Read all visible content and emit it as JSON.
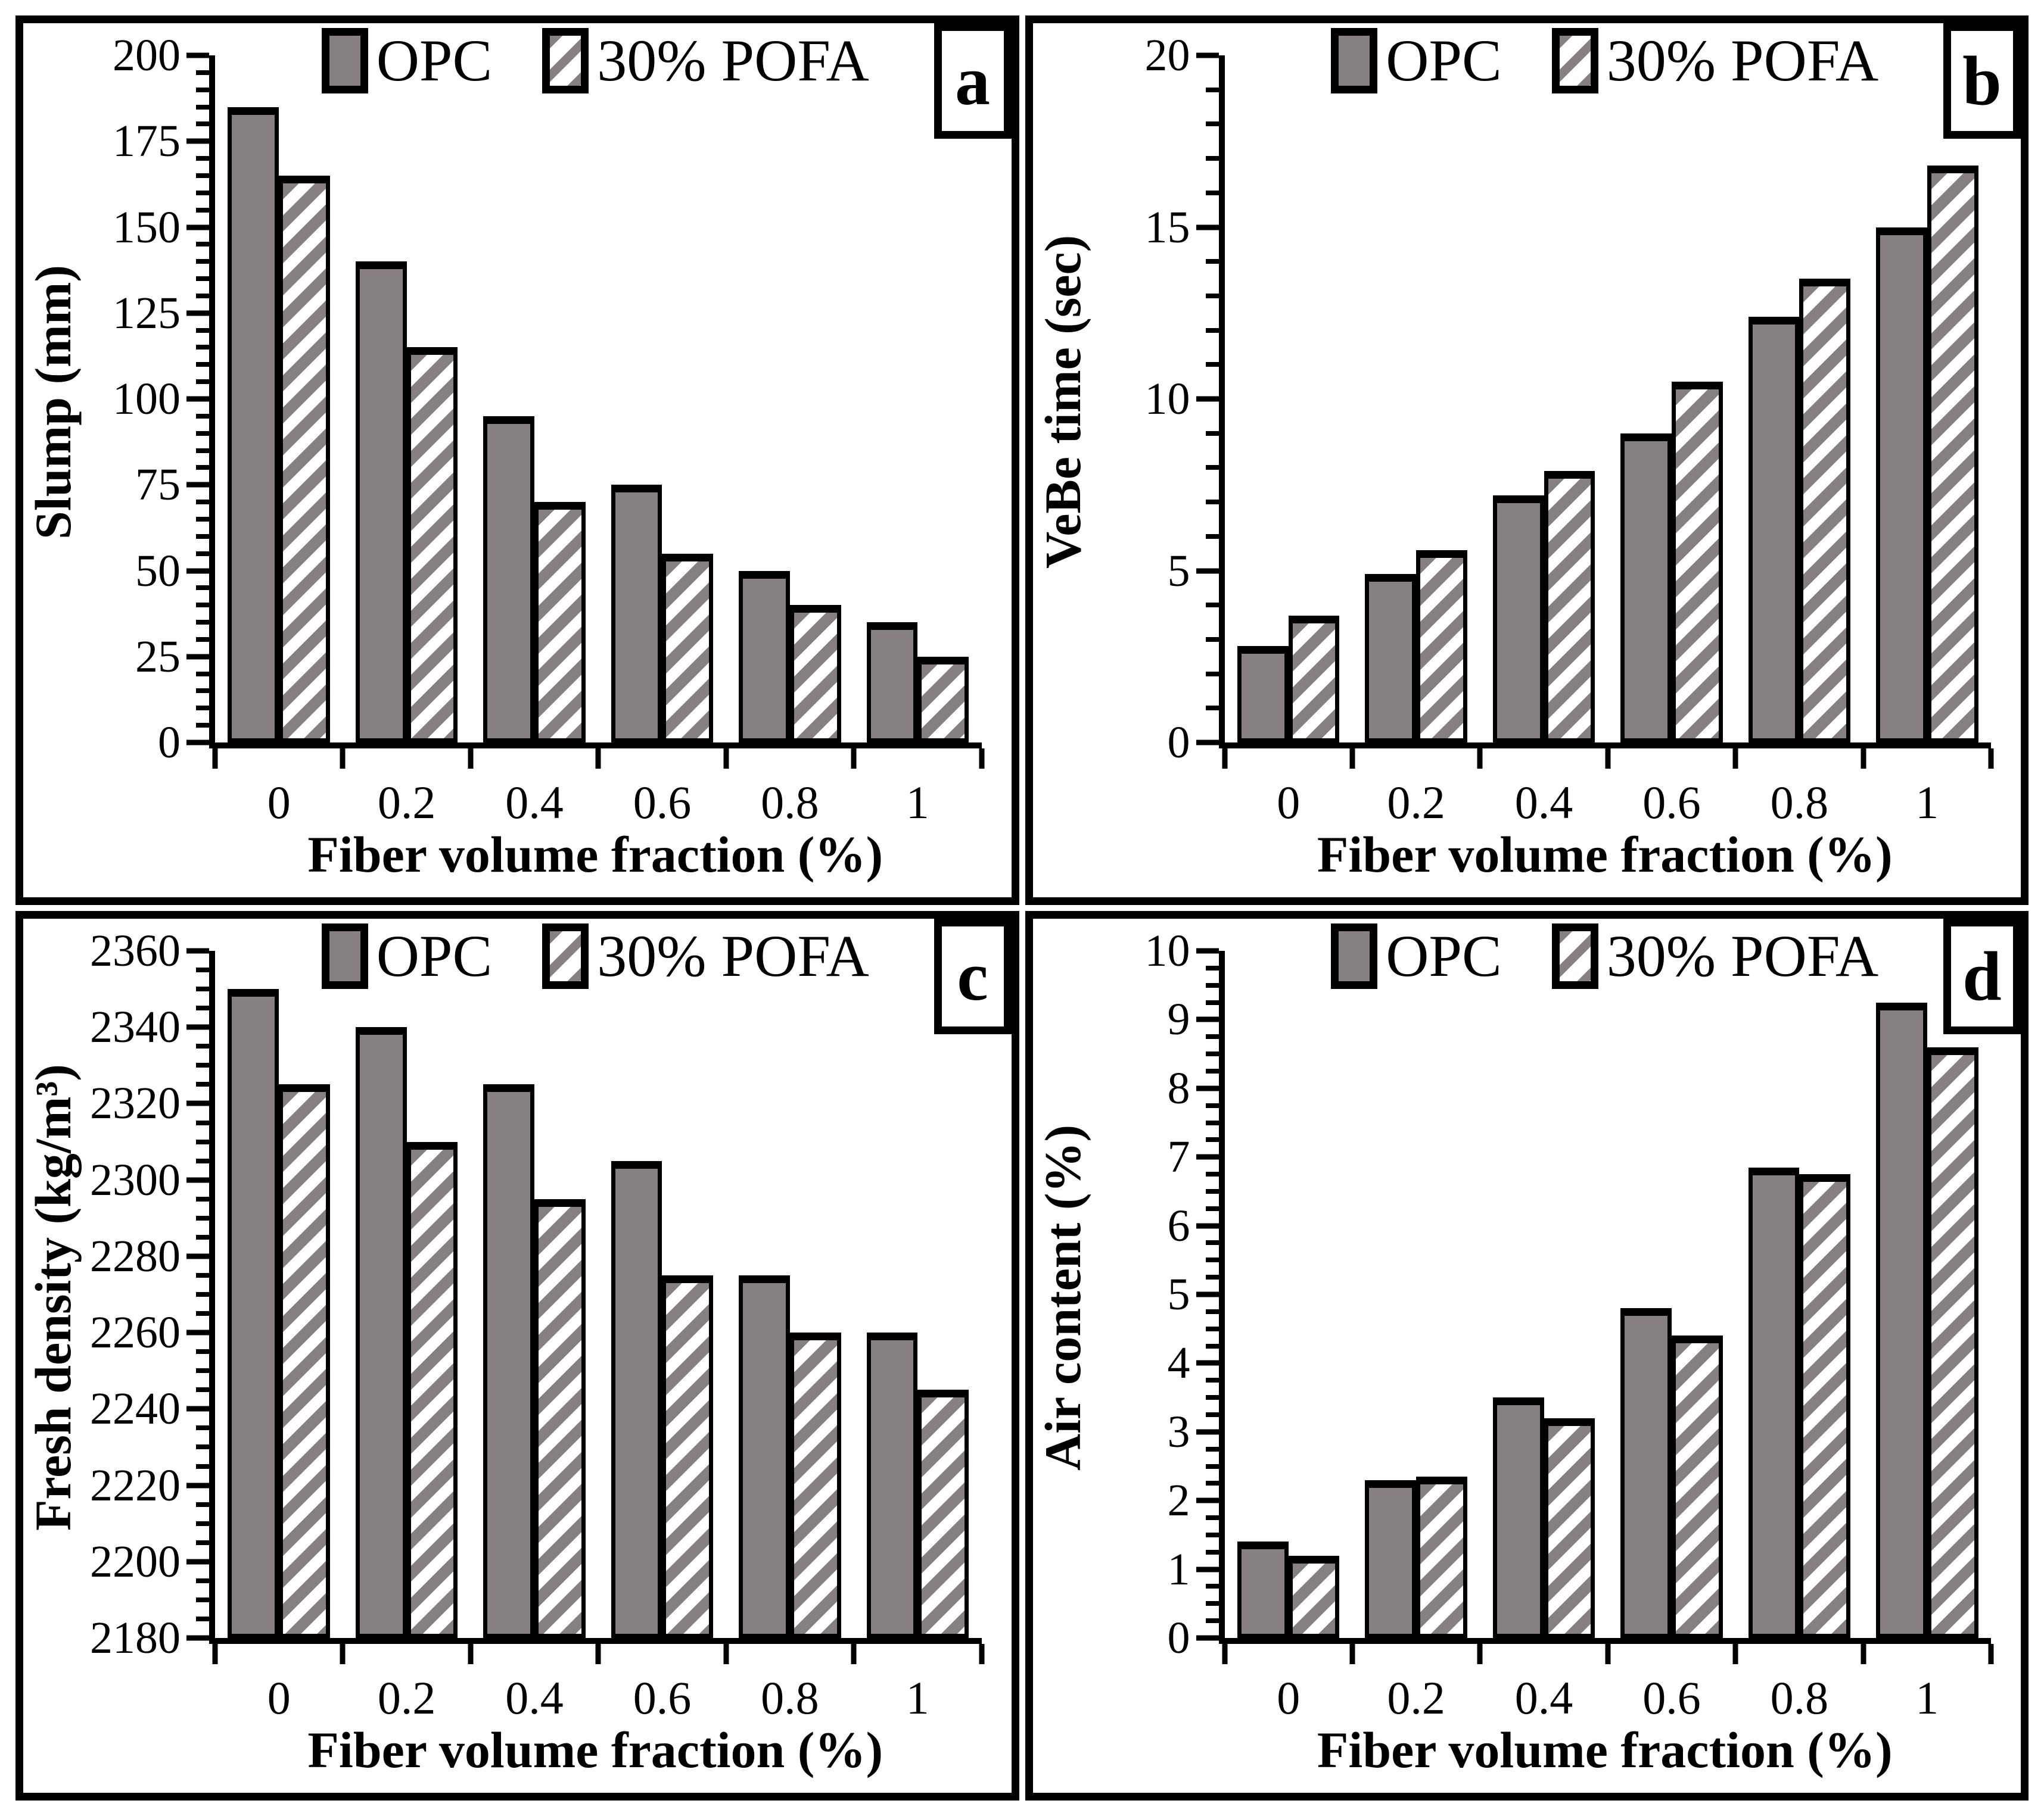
{
  "figure": {
    "xlabel": "Fiber volume fraction (%)",
    "colors": {
      "bar_fill": "#868082",
      "hatch": "#868082",
      "outline": "#000000",
      "background": "#ffffff"
    }
  },
  "chart_data": [
    {
      "type": "bar",
      "panel_label": "a",
      "ylabel": "Slump (mm)",
      "xlabel": "Fiber volume fraction (%)",
      "categories": [
        "0",
        "0.2",
        "0.4",
        "0.6",
        "0.8",
        "1"
      ],
      "ylim": [
        0,
        200
      ],
      "ytick_major_step": 25,
      "ytick_minor_step": 5,
      "grid": false,
      "legend_position": "top-center",
      "series": [
        {
          "name": "OPC",
          "style": "solid",
          "values": [
            185,
            140,
            95,
            75,
            50,
            35
          ]
        },
        {
          "name": "30% POFA",
          "style": "hatched",
          "values": [
            165,
            115,
            70,
            55,
            40,
            25
          ]
        }
      ]
    },
    {
      "type": "bar",
      "panel_label": "b",
      "ylabel": "VeBe time (sec)",
      "xlabel": "Fiber volume fraction (%)",
      "categories": [
        "0",
        "0.2",
        "0.4",
        "0.6",
        "0.8",
        "1"
      ],
      "ylim": [
        0,
        20
      ],
      "ytick_major_step": 5,
      "ytick_minor_step": 1,
      "grid": false,
      "legend_position": "top-center",
      "series": [
        {
          "name": "OPC",
          "style": "solid",
          "values": [
            2.8,
            4.9,
            7.2,
            9.0,
            12.4,
            15.0
          ]
        },
        {
          "name": "30% POFA",
          "style": "hatched",
          "values": [
            3.7,
            5.6,
            7.9,
            10.5,
            13.5,
            16.8
          ]
        }
      ]
    },
    {
      "type": "bar",
      "panel_label": "c",
      "ylabel": "Fresh density (kg/m³)",
      "xlabel": "Fiber volume fraction (%)",
      "categories": [
        "0",
        "0.2",
        "0.4",
        "0.6",
        "0.8",
        "1"
      ],
      "ylim": [
        2180,
        2360
      ],
      "ytick_major_step": 20,
      "ytick_minor_step": 5,
      "grid": false,
      "legend_position": "top-center",
      "series": [
        {
          "name": "OPC",
          "style": "solid",
          "values": [
            2350,
            2340,
            2325,
            2305,
            2275,
            2260
          ]
        },
        {
          "name": "30% POFA",
          "style": "hatched",
          "values": [
            2325,
            2310,
            2295,
            2275,
            2260,
            2245
          ]
        }
      ]
    },
    {
      "type": "bar",
      "panel_label": "d",
      "ylabel": "Air content (%)",
      "xlabel": "Fiber volume fraction (%)",
      "categories": [
        "0",
        "0.2",
        "0.4",
        "0.6",
        "0.8",
        "1"
      ],
      "ylim": [
        0,
        10
      ],
      "ytick_major_step": 1,
      "ytick_minor_step": 0.25,
      "grid": false,
      "legend_position": "top-center",
      "series": [
        {
          "name": "OPC",
          "style": "solid",
          "values": [
            1.4,
            2.3,
            3.5,
            4.8,
            6.85,
            9.25
          ]
        },
        {
          "name": "30% POFA",
          "style": "hatched",
          "values": [
            1.2,
            2.35,
            3.2,
            4.4,
            6.75,
            8.6
          ]
        }
      ]
    }
  ]
}
